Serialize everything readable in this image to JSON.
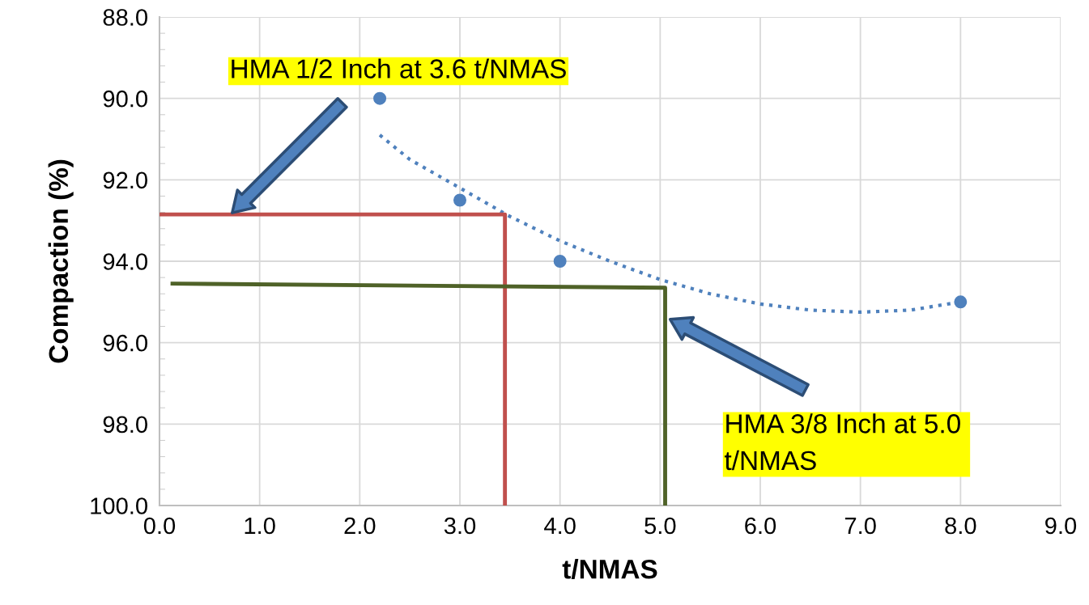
{
  "chart_data": {
    "type": "scatter",
    "xlabel": "t/NMAS",
    "ylabel": "Compaction (%)",
    "xlim": [
      0,
      9
    ],
    "ylim": [
      100,
      88
    ],
    "xticks": [
      {
        "value": 0,
        "label": "0.0"
      },
      {
        "value": 1,
        "label": "1.0"
      },
      {
        "value": 2,
        "label": "2.0"
      },
      {
        "value": 3,
        "label": "3.0"
      },
      {
        "value": 4,
        "label": "4.0"
      },
      {
        "value": 5,
        "label": "5.0"
      },
      {
        "value": 6,
        "label": "6.0"
      },
      {
        "value": 7,
        "label": "7.0"
      },
      {
        "value": 8,
        "label": "8.0"
      },
      {
        "value": 9,
        "label": "9.0"
      }
    ],
    "yticks": [
      {
        "value": 88,
        "label": "88.0"
      },
      {
        "value": 90,
        "label": "90.0"
      },
      {
        "value": 92,
        "label": "92.0"
      },
      {
        "value": 94,
        "label": "94.0"
      },
      {
        "value": 96,
        "label": "96.0"
      },
      {
        "value": 98,
        "label": "98.0"
      },
      {
        "value": 100,
        "label": "100.0"
      }
    ],
    "grid": true,
    "legend": false,
    "series": [
      {
        "color": "#4f81bd",
        "marker": "circle",
        "x": [
          2.2,
          3,
          4,
          8
        ],
        "values": [
          90,
          92.5,
          94,
          95
        ]
      },
      {
        "type": "line",
        "color": "#4f81bd",
        "line_style": "dotted",
        "marker": "none",
        "x": [
          2.2,
          2.5,
          3,
          3.5,
          4,
          4.5,
          5,
          5.5,
          6,
          6.5,
          7,
          7.5,
          8
        ],
        "values": [
          90.9,
          91.5,
          92.2,
          92.9,
          93.5,
          94.0,
          94.45,
          94.8,
          95.05,
          95.2,
          95.25,
          95.2,
          95.0
        ]
      },
      {
        "type": "line",
        "color": "#c0504d",
        "line_style": "solid",
        "marker": "none",
        "x": [
          0,
          3.45,
          3.45
        ],
        "values": [
          92.85,
          92.85,
          100
        ]
      },
      {
        "type": "line",
        "color": "#4f6228",
        "line_style": "solid",
        "marker": "none",
        "x": [
          0.13,
          5.05,
          5.05
        ],
        "values": [
          94.55,
          94.65,
          100
        ]
      }
    ],
    "annotations": [
      "HMA 1/2 Inch at 3.6 t/NMAS",
      "HMA 3/8 Inch at 5.0 \nt/NMAS"
    ]
  }
}
